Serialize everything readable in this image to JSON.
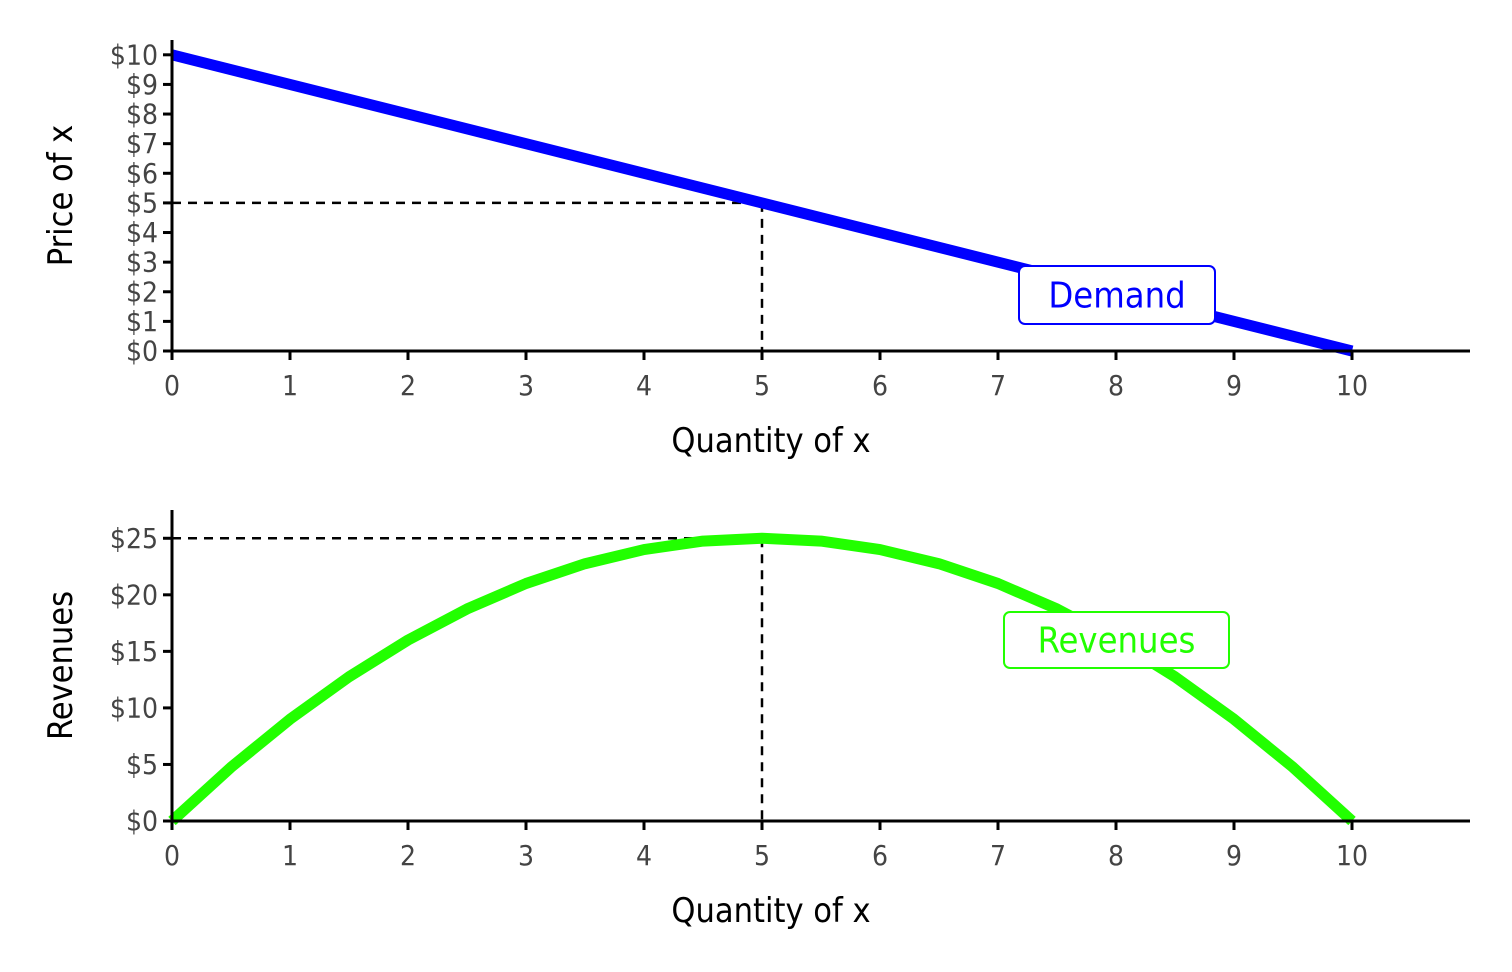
{
  "chart_data": [
    {
      "type": "line",
      "xlabel": "Quantity of x",
      "ylabel": "Price of x",
      "xlim": [
        0,
        11
      ],
      "ylim": [
        0,
        10.5
      ],
      "x_ticks": [
        0,
        1,
        2,
        3,
        4,
        5,
        6,
        7,
        8,
        9,
        10
      ],
      "x_tick_labels": [
        "0",
        "1",
        "2",
        "3",
        "4",
        "5",
        "6",
        "7",
        "8",
        "9",
        "10"
      ],
      "y_ticks": [
        0,
        1,
        2,
        3,
        4,
        5,
        6,
        7,
        8,
        9,
        10
      ],
      "y_tick_labels": [
        "$0",
        "$1",
        "$2",
        "$3",
        "$4",
        "$5",
        "$6",
        "$7",
        "$8",
        "$9",
        "$10"
      ],
      "series": [
        {
          "name": "Demand",
          "color": "#0000ff",
          "x": [
            0,
            10
          ],
          "y": [
            10,
            0
          ]
        }
      ],
      "label": {
        "text": "Demand",
        "x": 8,
        "y": 2,
        "color": "#0000ff"
      },
      "reference": {
        "x": 5,
        "y": 5
      },
      "grid": false
    },
    {
      "type": "line",
      "xlabel": "Quantity of x",
      "ylabel": "Revenues",
      "xlim": [
        0,
        11
      ],
      "ylim": [
        0,
        27.5
      ],
      "x_ticks": [
        0,
        1,
        2,
        3,
        4,
        5,
        6,
        7,
        8,
        9,
        10
      ],
      "x_tick_labels": [
        "0",
        "1",
        "2",
        "3",
        "4",
        "5",
        "6",
        "7",
        "8",
        "9",
        "10"
      ],
      "y_ticks": [
        0,
        5,
        10,
        15,
        20,
        25
      ],
      "y_tick_labels": [
        "$0",
        "$5",
        "$10",
        "$15",
        "$20",
        "$25"
      ],
      "series": [
        {
          "name": "Revenues",
          "color": "#22ff00",
          "x": [
            0,
            0.5,
            1,
            1.5,
            2,
            2.5,
            3,
            3.5,
            4,
            4.5,
            5,
            5.5,
            6,
            6.5,
            7,
            7.5,
            8,
            8.5,
            9,
            9.5,
            10
          ],
          "y": [
            0,
            4.75,
            9,
            12.75,
            16,
            18.75,
            21,
            22.75,
            24,
            24.75,
            25,
            24.75,
            24,
            22.75,
            21,
            18.75,
            16,
            12.75,
            9,
            4.75,
            0
          ]
        }
      ],
      "label": {
        "text": "Revenues",
        "x": 8,
        "y": 15.5,
        "color": "#22ff00"
      },
      "reference": {
        "x": 5,
        "y": 25
      },
      "grid": false
    }
  ]
}
